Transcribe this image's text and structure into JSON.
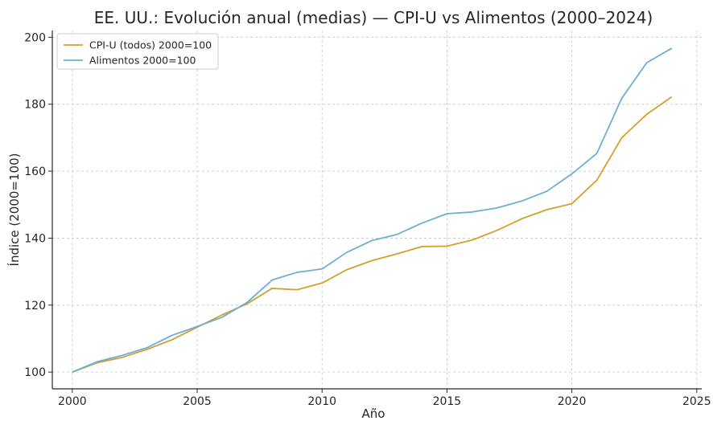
{
  "chart_data": {
    "type": "line",
    "title": "EE. UU.: Evolución anual (medias) — CPI-U vs Alimentos (2000–2024)",
    "xlabel": "Año",
    "ylabel": "Índice (2000=100)",
    "xlim": [
      1999.2,
      2025.2
    ],
    "ylim": [
      95,
      202
    ],
    "xticks": [
      2000,
      2005,
      2010,
      2015,
      2020,
      2025
    ],
    "yticks": [
      100,
      120,
      140,
      160,
      180,
      200
    ],
    "grid": true,
    "legend_position": "top-left",
    "x": [
      2000,
      2001,
      2002,
      2003,
      2004,
      2005,
      2006,
      2007,
      2008,
      2009,
      2010,
      2011,
      2012,
      2013,
      2014,
      2015,
      2016,
      2017,
      2018,
      2019,
      2020,
      2021,
      2022,
      2023,
      2024
    ],
    "series": [
      {
        "name": "CPI-U (todos) 2000=100",
        "color": "#d4a02d",
        "values": [
          100.0,
          102.8,
          104.4,
          106.8,
          109.7,
          113.4,
          117.1,
          120.4,
          125.0,
          124.6,
          126.6,
          130.6,
          133.3,
          135.3,
          137.5,
          137.6,
          139.4,
          142.3,
          145.8,
          148.5,
          150.3,
          157.3,
          170.0,
          177.0,
          182.2
        ]
      },
      {
        "name": "Alimentos 2000=100",
        "color": "#6baed6",
        "values": [
          100.0,
          103.1,
          105.0,
          107.3,
          111.0,
          113.6,
          116.4,
          120.8,
          127.5,
          129.8,
          130.8,
          135.8,
          139.3,
          141.1,
          144.5,
          147.3,
          147.8,
          149.0,
          151.1,
          154.0,
          159.2,
          165.3,
          181.8,
          192.4,
          196.7
        ]
      }
    ]
  }
}
